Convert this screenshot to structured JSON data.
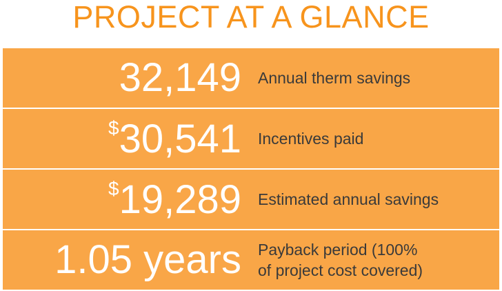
{
  "header": {
    "title": "PROJECT AT A GLANCE"
  },
  "rows": [
    {
      "value": "32,149",
      "label_lines": [
        "Annual therm savings"
      ]
    },
    {
      "prefix": "$",
      "value": "30,541",
      "label_lines": [
        "Incentives paid"
      ]
    },
    {
      "prefix": "$",
      "value": "19,289",
      "label_lines": [
        "Estimated annual savings"
      ]
    },
    {
      "value": "1.05 years",
      "label_lines": [
        "Payback period (100%",
        "of project cost covered)"
      ]
    }
  ]
}
